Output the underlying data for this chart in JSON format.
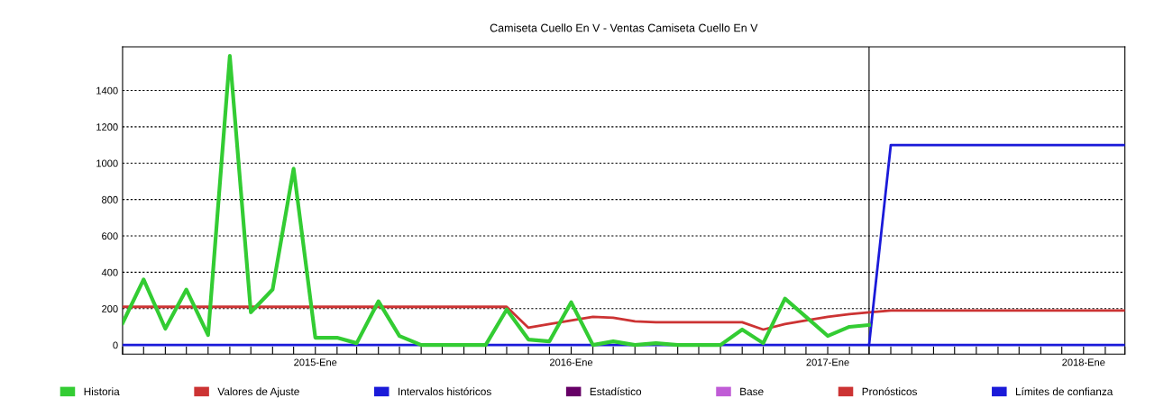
{
  "chart_data": {
    "type": "line",
    "title": "Camiseta Cuello En V - Ventas Camiseta Cuello En V",
    "xlim": [
      "2014-04",
      "2018-03"
    ],
    "ylim": [
      -50,
      1640
    ],
    "yticks": [
      0,
      200,
      400,
      600,
      800,
      1000,
      1200,
      1400
    ],
    "xticks": [
      {
        "value": "2014-04",
        "label": null
      },
      {
        "value": "2014-05",
        "label": null
      },
      {
        "value": "2014-06",
        "label": null
      },
      {
        "value": "2014-07",
        "label": null
      },
      {
        "value": "2014-08",
        "label": null
      },
      {
        "value": "2014-09",
        "label": null
      },
      {
        "value": "2014-10",
        "label": null
      },
      {
        "value": "2014-11",
        "label": null
      },
      {
        "value": "2014-12",
        "label": null
      },
      {
        "value": "2015-01",
        "label": "2015-Ene"
      },
      {
        "value": "2015-02",
        "label": null
      },
      {
        "value": "2015-03",
        "label": null
      },
      {
        "value": "2015-04",
        "label": null
      },
      {
        "value": "2015-05",
        "label": null
      },
      {
        "value": "2015-06",
        "label": null
      },
      {
        "value": "2015-07",
        "label": null
      },
      {
        "value": "2015-08",
        "label": null
      },
      {
        "value": "2015-09",
        "label": null
      },
      {
        "value": "2015-10",
        "label": null
      },
      {
        "value": "2015-11",
        "label": null
      },
      {
        "value": "2015-12",
        "label": null
      },
      {
        "value": "2016-01",
        "label": "2016-Ene"
      },
      {
        "value": "2016-02",
        "label": null
      },
      {
        "value": "2016-03",
        "label": null
      },
      {
        "value": "2016-04",
        "label": null
      },
      {
        "value": "2016-05",
        "label": null
      },
      {
        "value": "2016-06",
        "label": null
      },
      {
        "value": "2016-07",
        "label": null
      },
      {
        "value": "2016-08",
        "label": null
      },
      {
        "value": "2016-09",
        "label": null
      },
      {
        "value": "2016-10",
        "label": null
      },
      {
        "value": "2016-11",
        "label": null
      },
      {
        "value": "2016-12",
        "label": null
      },
      {
        "value": "2017-01",
        "label": "2017-Ene"
      },
      {
        "value": "2017-02",
        "label": null
      },
      {
        "value": "2017-03",
        "label": null
      },
      {
        "value": "2017-04",
        "label": null
      },
      {
        "value": "2017-05",
        "label": null
      },
      {
        "value": "2017-06",
        "label": null
      },
      {
        "value": "2017-07",
        "label": null
      },
      {
        "value": "2017-08",
        "label": null
      },
      {
        "value": "2017-09",
        "label": null
      },
      {
        "value": "2017-10",
        "label": null
      },
      {
        "value": "2017-11",
        "label": null
      },
      {
        "value": "2017-12",
        "label": null
      },
      {
        "value": "2018-01",
        "label": "2018-Ene"
      },
      {
        "value": "2018-02",
        "label": null
      },
      {
        "value": "2018-03",
        "label": null
      }
    ],
    "grid": "y",
    "legend": "bottom",
    "marker": "none",
    "line_style": "solid",
    "ref_lines": [
      {
        "axis": "x",
        "value": "2017-03",
        "color": "#000000"
      }
    ],
    "series": [
      {
        "name": "Historia",
        "color": "#33cc33",
        "x": [
          "2014-04",
          "2014-05",
          "2014-06",
          "2014-07",
          "2014-08",
          "2014-09",
          "2014-10",
          "2014-11",
          "2014-12",
          "2015-01",
          "2015-02",
          "2015-03",
          "2015-04",
          "2015-05",
          "2015-06",
          "2015-07",
          "2015-08",
          "2015-09",
          "2015-10",
          "2015-11",
          "2015-12",
          "2016-01",
          "2016-02",
          "2016-03",
          "2016-04",
          "2016-05",
          "2016-06",
          "2016-07",
          "2016-08",
          "2016-09",
          "2016-10",
          "2016-11",
          "2016-12",
          "2017-01",
          "2017-02",
          "2017-03"
        ],
        "values": [
          120,
          360,
          90,
          305,
          55,
          1590,
          180,
          305,
          970,
          40,
          40,
          10,
          240,
          50,
          0,
          0,
          0,
          0,
          195,
          30,
          20,
          235,
          0,
          20,
          0,
          10,
          0,
          0,
          0,
          85,
          10,
          255,
          155,
          50,
          100,
          110
        ]
      },
      {
        "name": "Valores de Ajuste",
        "color": "#cc3333",
        "x": [
          "2014-04",
          "2015-10",
          "2015-11",
          "2015-12",
          "2016-01",
          "2016-02",
          "2016-03",
          "2016-04",
          "2016-05",
          "2016-06",
          "2016-07",
          "2016-08",
          "2016-09",
          "2016-10",
          "2016-11",
          "2016-12",
          "2017-01",
          "2017-02",
          "2017-03",
          "2017-04",
          "2018-03"
        ],
        "values": [
          210,
          210,
          95,
          115,
          135,
          155,
          150,
          130,
          125,
          125,
          125,
          125,
          125,
          85,
          115,
          135,
          155,
          170,
          180,
          190,
          190
        ]
      },
      {
        "name": "Intervalos históricos",
        "color": "#1a1ad9",
        "x": [
          "2014-04",
          "2018-03"
        ],
        "values": [
          0,
          0
        ]
      },
      {
        "name": "Estadístico",
        "color": "#660066"
      },
      {
        "name": "Base",
        "color": "#c05cd6"
      },
      {
        "name": "Pronósticos",
        "color": "#cc3333"
      },
      {
        "name": "Límites de confianza",
        "color": "#1a1ad9",
        "x": [
          "2017-03",
          "2017-04",
          "2018-03"
        ],
        "values": [
          0,
          1100,
          1100
        ]
      }
    ]
  }
}
